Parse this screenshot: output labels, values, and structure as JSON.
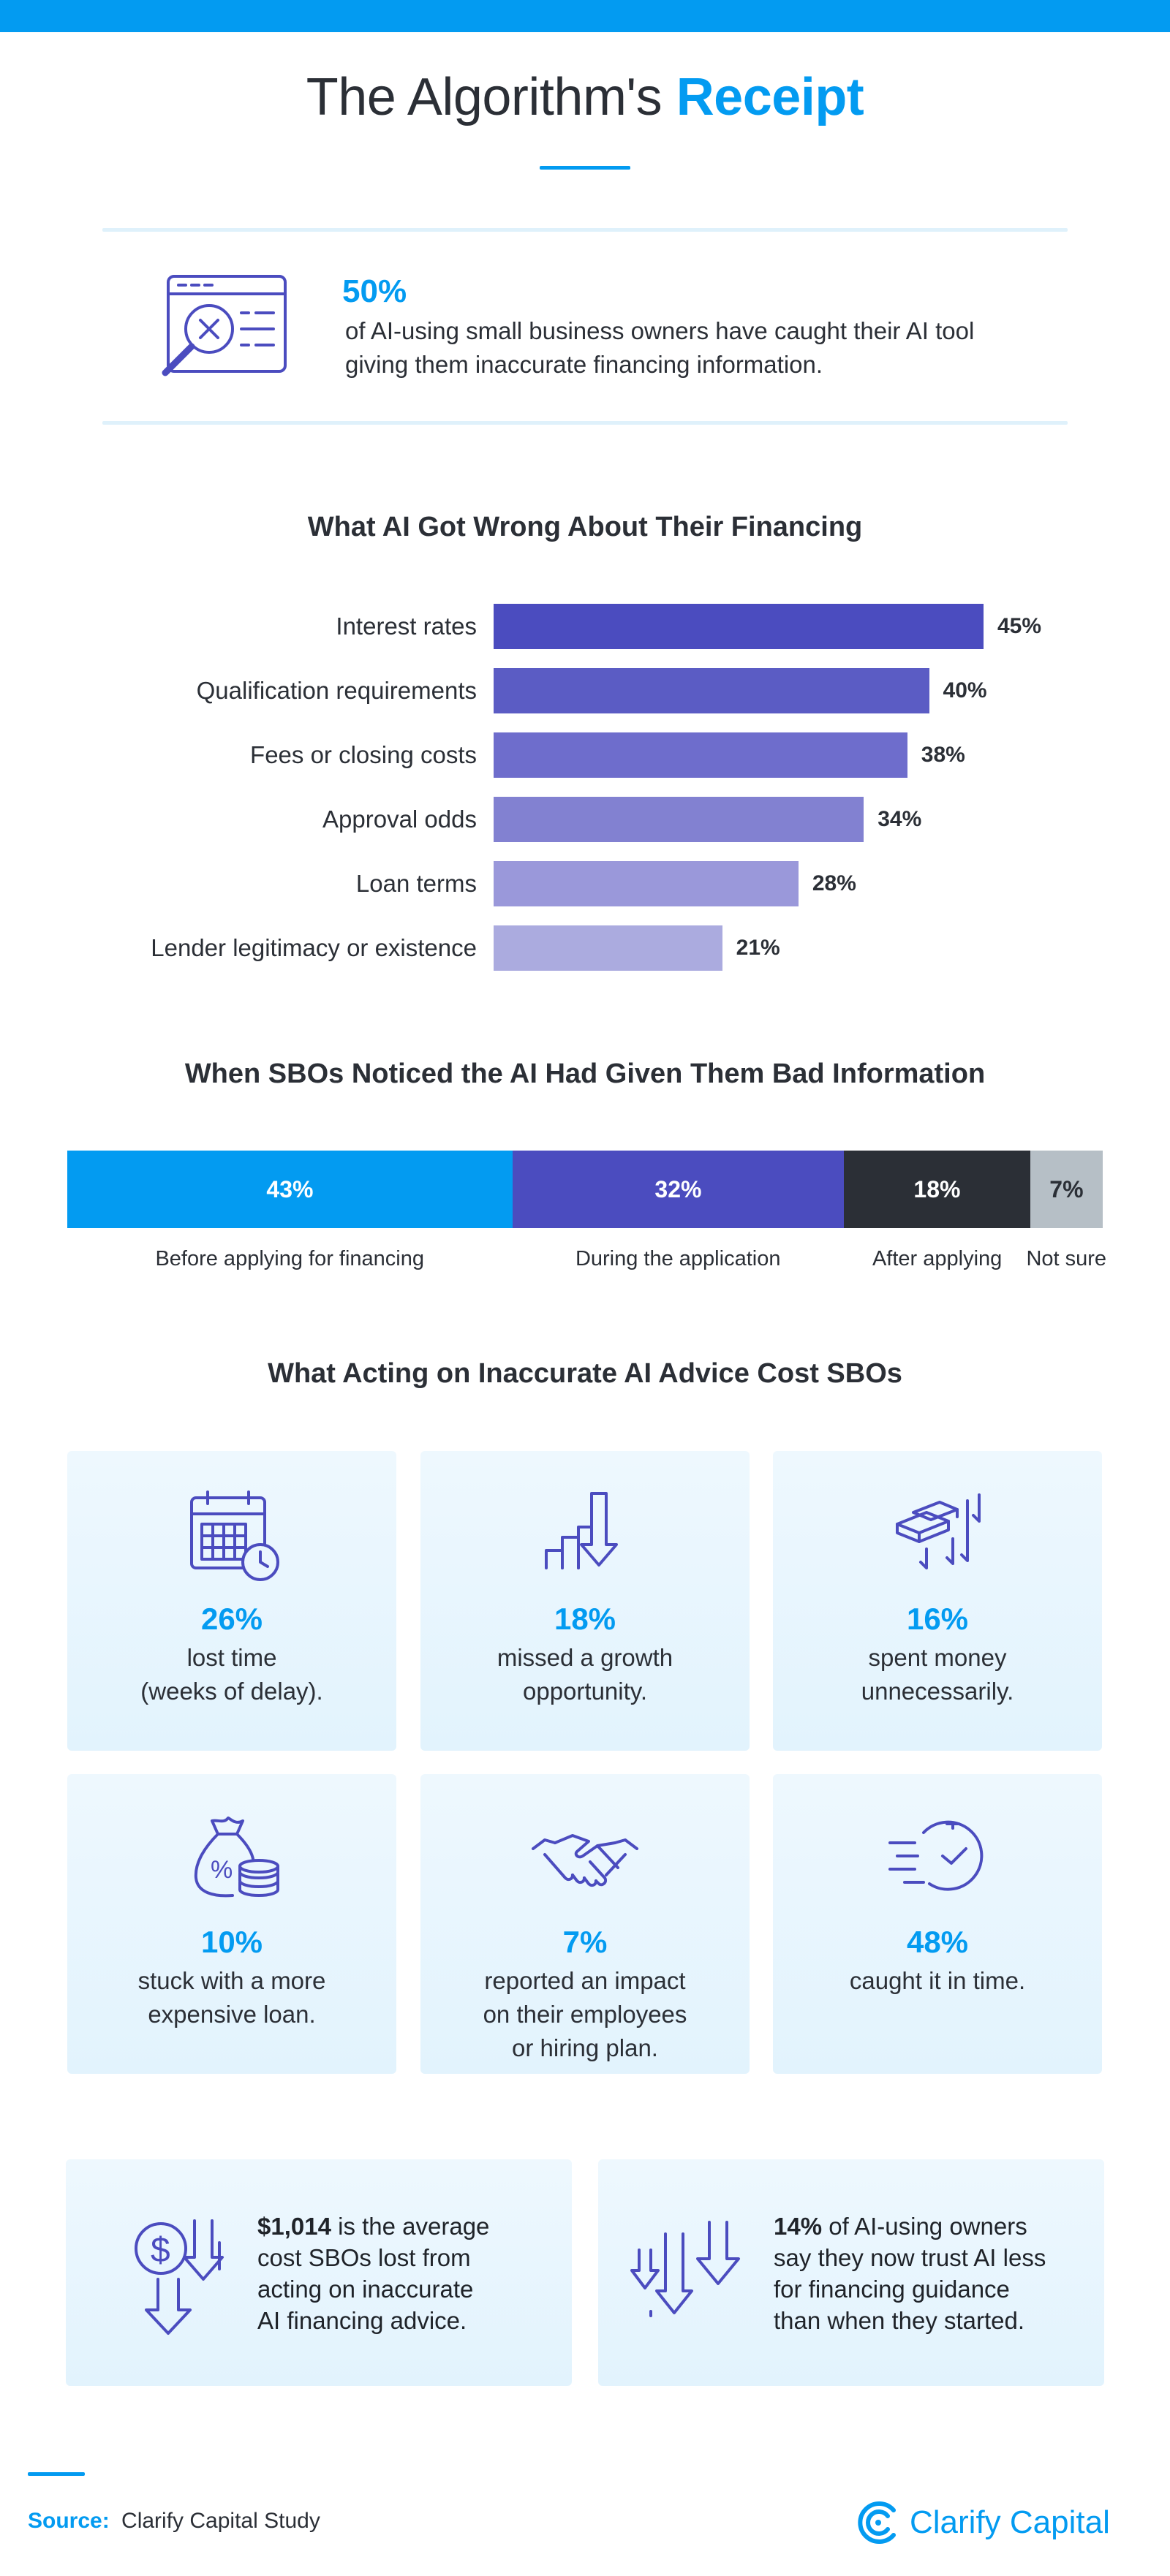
{
  "colors": {
    "accent": "#039bf1",
    "purple": "#4b4cbf",
    "dark": "#2b2f36",
    "grey": "#b6bfc6"
  },
  "header": {
    "title_prefix": "The Algorithm's",
    "title_accent": "Receipt"
  },
  "hero": {
    "icon": "magnifier-on-document-icon",
    "percent": "50%",
    "text": "of AI-using small business owners have caught their AI tool giving them inaccurate financing information."
  },
  "chart_data": [
    {
      "type": "bar",
      "orientation": "horizontal",
      "title": "What AI Got Wrong About Their Financing",
      "categories": [
        "Interest rates",
        "Qualification requirements",
        "Fees or closing costs",
        "Approval odds",
        "Loan terms",
        "Lender legitimacy or existence"
      ],
      "values": [
        45,
        40,
        38,
        34,
        28,
        21
      ],
      "value_labels": [
        "45%",
        "40%",
        "38%",
        "34%",
        "28%",
        "21%"
      ],
      "bar_colors": [
        "#4b4cbf",
        "#5b5cc4",
        "#6e6dcc",
        "#8281d1",
        "#9a98da",
        "#ababdf"
      ],
      "xlim": [
        0,
        45
      ],
      "grid": false
    },
    {
      "type": "bar",
      "orientation": "stacked-horizontal",
      "title": "When SBOs Noticed the AI Had Given Them Bad Information",
      "categories": [
        "Before applying for financing",
        "During the application",
        "After applying",
        "Not sure"
      ],
      "values": [
        43,
        32,
        18,
        7
      ],
      "value_labels": [
        "43%",
        "32%",
        "18%",
        "7%"
      ],
      "seg_colors": [
        "#039bf1",
        "#4b4cbf",
        "#2b2f36",
        "#b6bfc6"
      ],
      "text_colors": [
        "#ffffff",
        "#ffffff",
        "#ffffff",
        "#2b2f36"
      ],
      "total": 100,
      "grid": false
    }
  ],
  "costs": {
    "title": "What Acting on Inaccurate AI Advice Cost SBOs",
    "cards": [
      {
        "icon": "calendar-clock-icon",
        "percent": "26%",
        "line1": "lost time",
        "line2": "(weeks of delay).",
        "line3": ""
      },
      {
        "icon": "bar-chart-down-arrow-icon",
        "percent": "18%",
        "line1": "missed a growth",
        "line2": "opportunity.",
        "line3": ""
      },
      {
        "icon": "money-stack-down-arrows-icon",
        "percent": "16%",
        "line1": "spent money",
        "line2": "unnecessarily.",
        "line3": ""
      },
      {
        "icon": "money-bag-coins-icon",
        "percent": "10%",
        "line1": "stuck with a more",
        "line2": "expensive loan.",
        "line3": ""
      },
      {
        "icon": "handshake-icon",
        "percent": "7%",
        "line1": "reported an impact",
        "line2": "on their employees",
        "line3": "or hiring plan."
      },
      {
        "icon": "fast-clock-icon",
        "percent": "48%",
        "line1": "caught it in time.",
        "line2": "",
        "line3": ""
      }
    ]
  },
  "facts": [
    {
      "icon": "dollar-down-arrows-icon",
      "bold": "$1,014",
      "l1": " is the average",
      "l2": "cost SBOs lost from",
      "l3": "acting on inaccurate",
      "l4": "AI financing advice."
    },
    {
      "icon": "down-arrows-icon",
      "bold": "14%",
      "l1": " of AI-using owners",
      "l2": "say they now trust AI less",
      "l3": "for financing guidance",
      "l4": "than when they started."
    }
  ],
  "footer": {
    "source_key": "Source:",
    "source_value": "Clarify Capital Study",
    "brand_name": "Clarify Capital",
    "brand_icon": "clarify-capital-logo-icon"
  }
}
